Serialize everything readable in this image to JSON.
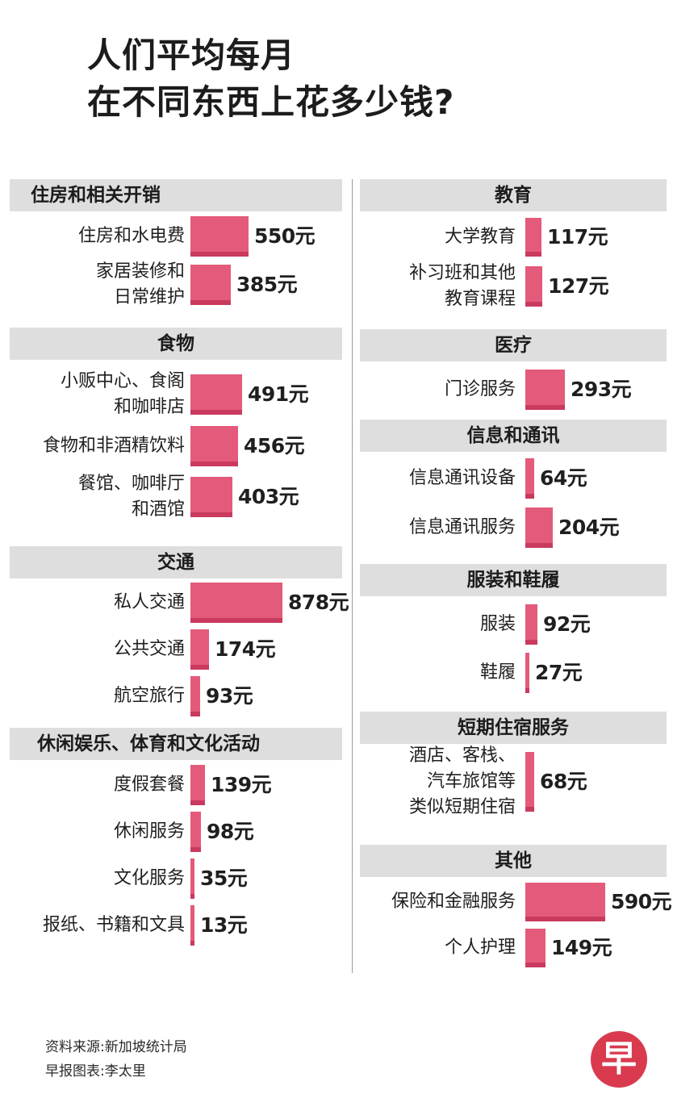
{
  "title": [
    "人们平均每月",
    "在不同东西上花多少钱?"
  ],
  "footer": {
    "source": "资料来源:新加坡统计局",
    "credit": "早报图表:李太里"
  },
  "logo": {
    "text": "早",
    "color": "#d93a4e"
  },
  "colors": {
    "bar": "#e45a7a",
    "bar_edge": "#c93a5e",
    "header_bg": "#dedede"
  },
  "chart_data": {
    "type": "bar",
    "orientation": "horizontal",
    "unit": "元",
    "panels": [
      {
        "column": "left",
        "groups": [
          {
            "name": "住房和相关开销",
            "items": [
              {
                "label": "住房和水电费",
                "value": 550
              },
              {
                "label": "家居装修和\n日常维护",
                "value": 385
              }
            ]
          },
          {
            "name": "食物",
            "items": [
              {
                "label": "小贩中心、食阁\n和咖啡店",
                "value": 491
              },
              {
                "label": "食物和非酒精饮料",
                "value": 456
              },
              {
                "label": "餐馆、咖啡厅\n和酒馆",
                "value": 403
              }
            ]
          },
          {
            "name": "交通",
            "items": [
              {
                "label": "私人交通",
                "value": 878
              },
              {
                "label": "公共交通",
                "value": 174
              },
              {
                "label": "航空旅行",
                "value": 93
              }
            ]
          },
          {
            "name": "休闲娱乐、体育和文化活动",
            "items": [
              {
                "label": "度假套餐",
                "value": 139
              },
              {
                "label": "休闲服务",
                "value": 98
              },
              {
                "label": "文化服务",
                "value": 35
              },
              {
                "label": "报纸、书籍和文具",
                "value": 13
              }
            ]
          }
        ]
      },
      {
        "column": "right",
        "groups": [
          {
            "name": "教育",
            "items": [
              {
                "label": "大学教育",
                "value": 117
              },
              {
                "label": "补习班和其他\n教育课程",
                "value": 127
              }
            ]
          },
          {
            "name": "医疗",
            "items": [
              {
                "label": "门诊服务",
                "value": 293
              }
            ]
          },
          {
            "name": "信息和通讯",
            "items": [
              {
                "label": "信息通讯设备",
                "value": 64
              },
              {
                "label": "信息通讯服务",
                "value": 204
              }
            ]
          },
          {
            "name": "服装和鞋履",
            "items": [
              {
                "label": "服装",
                "value": 92
              },
              {
                "label": "鞋履",
                "value": 27
              }
            ]
          },
          {
            "name": "短期住宿服务",
            "items": [
              {
                "label": "酒店、客栈、\n汽车旅馆等\n类似短期住宿",
                "value": 68
              }
            ]
          },
          {
            "name": "其他",
            "items": [
              {
                "label": "保险和金融服务",
                "value": 590
              },
              {
                "label": "个人护理",
                "value": 149
              }
            ]
          }
        ]
      }
    ]
  }
}
